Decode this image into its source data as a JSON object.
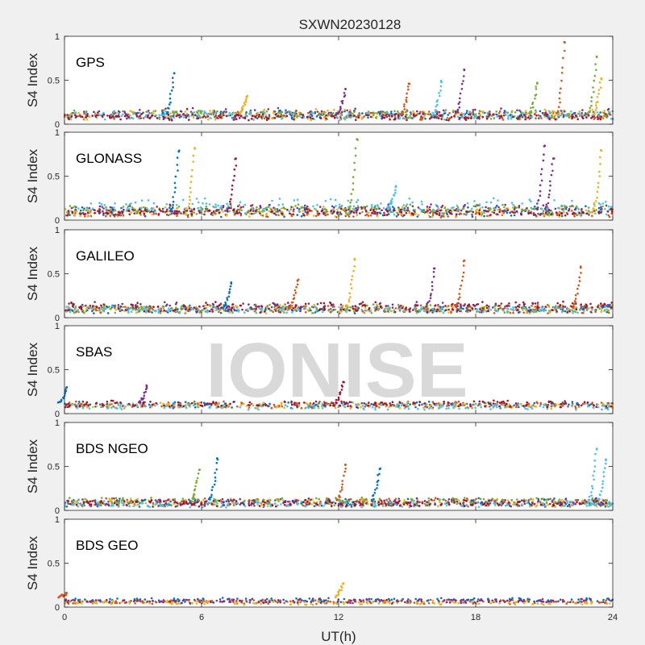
{
  "chart_data": {
    "type": "scatter",
    "title": "SXWN20230128",
    "xlabel": "UT(h)",
    "ylabel": "S4 Index",
    "xlim": [
      0,
      24
    ],
    "ylim": [
      0,
      1
    ],
    "xticks": [
      "0",
      "6",
      "12",
      "18",
      "24"
    ],
    "yticks": [
      "0",
      "0.5",
      "1"
    ],
    "watermark": "IONISE",
    "series_colors": [
      "#0072BD",
      "#D95319",
      "#EDB120",
      "#7E2F8E",
      "#77AC30",
      "#4DBEEE",
      "#A2142F"
    ],
    "panels": [
      {
        "name": "GPS",
        "baseline": [
          {
            "color": "#0072BD",
            "level": 0.11,
            "spread": 0.04
          },
          {
            "color": "#D95319",
            "level": 0.1,
            "spread": 0.04
          },
          {
            "color": "#EDB120",
            "level": 0.11,
            "spread": 0.05
          },
          {
            "color": "#7E2F8E",
            "level": 0.12,
            "spread": 0.05
          },
          {
            "color": "#77AC30",
            "level": 0.11,
            "spread": 0.04
          },
          {
            "color": "#4DBEEE",
            "level": 0.1,
            "spread": 0.04
          },
          {
            "color": "#A2142F",
            "level": 0.08,
            "spread": 0.03
          }
        ],
        "peaks": [
          {
            "x": 4.8,
            "y": 0.58,
            "color": "#0072BD"
          },
          {
            "x": 8.0,
            "y": 0.32,
            "color": "#EDB120"
          },
          {
            "x": 12.3,
            "y": 0.4,
            "color": "#7E2F8E"
          },
          {
            "x": 15.1,
            "y": 0.46,
            "color": "#D95319"
          },
          {
            "x": 16.5,
            "y": 0.48,
            "color": "#4DBEEE"
          },
          {
            "x": 17.5,
            "y": 0.62,
            "color": "#7E2F8E"
          },
          {
            "x": 20.7,
            "y": 0.47,
            "color": "#77AC30"
          },
          {
            "x": 21.9,
            "y": 0.93,
            "color": "#D95319"
          },
          {
            "x": 23.3,
            "y": 0.77,
            "color": "#77AC30"
          },
          {
            "x": 23.5,
            "y": 0.52,
            "color": "#EDB120"
          }
        ]
      },
      {
        "name": "GLONASS",
        "baseline": [
          {
            "color": "#0072BD",
            "level": 0.1,
            "spread": 0.05
          },
          {
            "color": "#D95319",
            "level": 0.08,
            "spread": 0.04
          },
          {
            "color": "#EDB120",
            "level": 0.09,
            "spread": 0.05
          },
          {
            "color": "#7E2F8E",
            "level": 0.12,
            "spread": 0.05
          },
          {
            "color": "#77AC30",
            "level": 0.12,
            "spread": 0.05
          },
          {
            "color": "#4DBEEE",
            "level": 0.15,
            "spread": 0.08
          },
          {
            "color": "#A2142F",
            "level": 0.09,
            "spread": 0.03
          }
        ],
        "peaks": [
          {
            "x": 5.0,
            "y": 0.78,
            "color": "#0072BD"
          },
          {
            "x": 5.7,
            "y": 0.82,
            "color": "#EDB120"
          },
          {
            "x": 7.5,
            "y": 0.7,
            "color": "#A2142F"
          },
          {
            "x": 12.8,
            "y": 0.92,
            "color": "#77AC30"
          },
          {
            "x": 14.5,
            "y": 0.38,
            "color": "#4DBEEE"
          },
          {
            "x": 21.0,
            "y": 0.84,
            "color": "#7E2F8E"
          },
          {
            "x": 21.4,
            "y": 0.7,
            "color": "#7E2F8E"
          },
          {
            "x": 23.5,
            "y": 0.79,
            "color": "#EDB120"
          }
        ]
      },
      {
        "name": "GALILEO",
        "baseline": [
          {
            "color": "#0072BD",
            "level": 0.1,
            "spread": 0.04
          },
          {
            "color": "#D95319",
            "level": 0.1,
            "spread": 0.04
          },
          {
            "color": "#EDB120",
            "level": 0.1,
            "spread": 0.04
          },
          {
            "color": "#7E2F8E",
            "level": 0.12,
            "spread": 0.05
          },
          {
            "color": "#77AC30",
            "level": 0.1,
            "spread": 0.04
          },
          {
            "color": "#4DBEEE",
            "level": 0.09,
            "spread": 0.03
          },
          {
            "color": "#A2142F",
            "level": 0.12,
            "spread": 0.05
          }
        ],
        "peaks": [
          {
            "x": 7.3,
            "y": 0.4,
            "color": "#0072BD"
          },
          {
            "x": 10.2,
            "y": 0.42,
            "color": "#D95319"
          },
          {
            "x": 12.7,
            "y": 0.66,
            "color": "#EDB120"
          },
          {
            "x": 16.2,
            "y": 0.56,
            "color": "#7E2F8E"
          },
          {
            "x": 17.5,
            "y": 0.65,
            "color": "#D95319"
          },
          {
            "x": 22.6,
            "y": 0.57,
            "color": "#D95319"
          }
        ]
      },
      {
        "name": "SBAS",
        "baseline": [
          {
            "color": "#0072BD",
            "level": 0.1,
            "spread": 0.03
          },
          {
            "color": "#D95319",
            "level": 0.1,
            "spread": 0.03
          },
          {
            "color": "#EDB120",
            "level": 0.09,
            "spread": 0.03
          },
          {
            "color": "#4DBEEE",
            "level": 0.08,
            "spread": 0.03
          },
          {
            "color": "#A2142F",
            "level": 0.11,
            "spread": 0.03
          }
        ],
        "peaks": [
          {
            "x": 0.1,
            "y": 0.3,
            "color": "#0072BD"
          },
          {
            "x": 3.6,
            "y": 0.31,
            "color": "#7E2F8E"
          },
          {
            "x": 12.2,
            "y": 0.36,
            "color": "#A2142F"
          }
        ]
      },
      {
        "name": "BDS NGEO",
        "baseline": [
          {
            "color": "#0072BD",
            "level": 0.09,
            "spread": 0.04
          },
          {
            "color": "#D95319",
            "level": 0.09,
            "spread": 0.04
          },
          {
            "color": "#EDB120",
            "level": 0.09,
            "spread": 0.04
          },
          {
            "color": "#7E2F8E",
            "level": 0.09,
            "spread": 0.04
          },
          {
            "color": "#77AC30",
            "level": 0.1,
            "spread": 0.04
          },
          {
            "color": "#4DBEEE",
            "level": 0.07,
            "spread": 0.03
          },
          {
            "color": "#A2142F",
            "level": 0.08,
            "spread": 0.03
          }
        ],
        "peaks": [
          {
            "x": 5.9,
            "y": 0.46,
            "color": "#77AC30"
          },
          {
            "x": 6.7,
            "y": 0.58,
            "color": "#0072BD"
          },
          {
            "x": 12.3,
            "y": 0.52,
            "color": "#D95319"
          },
          {
            "x": 13.8,
            "y": 0.47,
            "color": "#0072BD"
          },
          {
            "x": 23.3,
            "y": 0.7,
            "color": "#4DBEEE"
          },
          {
            "x": 23.7,
            "y": 0.58,
            "color": "#4DBEEE"
          }
        ]
      },
      {
        "name": "BDS GEO",
        "baseline": [
          {
            "color": "#0072BD",
            "level": 0.08,
            "spread": 0.02
          },
          {
            "color": "#D95319",
            "level": 0.06,
            "spread": 0.02
          },
          {
            "color": "#EDB120",
            "level": 0.05,
            "spread": 0.02
          },
          {
            "color": "#7E2F8E",
            "level": 0.07,
            "spread": 0.02
          }
        ],
        "peaks": [
          {
            "x": 0.1,
            "y": 0.16,
            "color": "#D95319"
          },
          {
            "x": 12.2,
            "y": 0.27,
            "color": "#EDB120"
          }
        ]
      }
    ]
  }
}
